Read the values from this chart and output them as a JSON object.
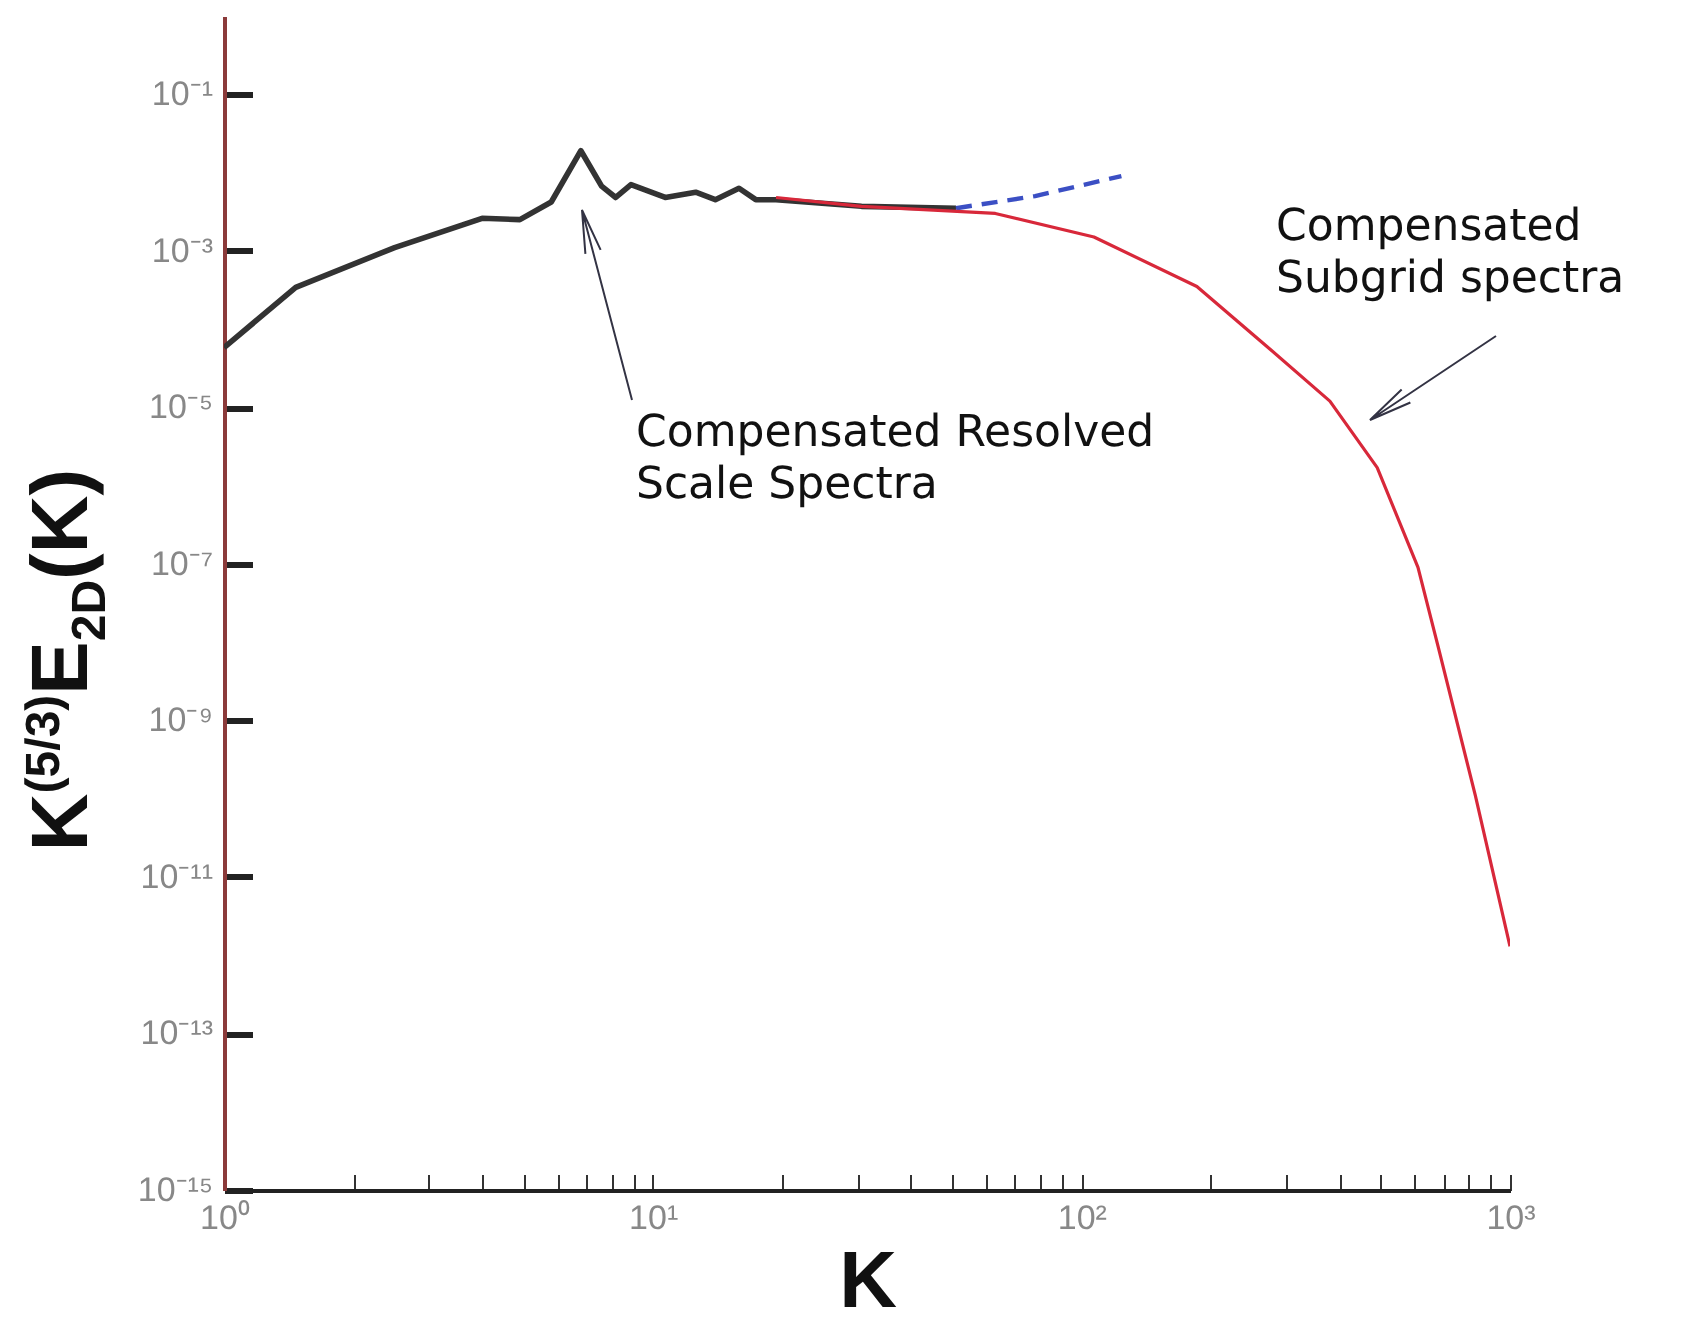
{
  "chart_data": {
    "type": "line",
    "xlabel": "K",
    "ylabel": "K$^{(5/3)}$E$_{2D}$(K)",
    "log": "xy",
    "xlim": [
      1,
      1000
    ],
    "ylim": [
      1e-15,
      1
    ],
    "xticks": [
      {
        "value": 1,
        "label": "10⁰"
      },
      {
        "value": 2,
        "label": null
      },
      {
        "value": 3,
        "label": null
      },
      {
        "value": 4,
        "label": null
      },
      {
        "value": 5,
        "label": null
      },
      {
        "value": 6,
        "label": null
      },
      {
        "value": 7,
        "label": null
      },
      {
        "value": 8,
        "label": null
      },
      {
        "value": 9,
        "label": null
      },
      {
        "value": 10,
        "label": "10¹"
      },
      {
        "value": 20,
        "label": null
      },
      {
        "value": 30,
        "label": null
      },
      {
        "value": 40,
        "label": null
      },
      {
        "value": 50,
        "label": null
      },
      {
        "value": 60,
        "label": null
      },
      {
        "value": 70,
        "label": null
      },
      {
        "value": 80,
        "label": null
      },
      {
        "value": 90,
        "label": null
      },
      {
        "value": 100,
        "label": "10²"
      },
      {
        "value": 200,
        "label": null
      },
      {
        "value": 300,
        "label": null
      },
      {
        "value": 400,
        "label": null
      },
      {
        "value": 500,
        "label": null
      },
      {
        "value": 600,
        "label": null
      },
      {
        "value": 700,
        "label": null
      },
      {
        "value": 800,
        "label": null
      },
      {
        "value": 900,
        "label": null
      },
      {
        "value": 1000,
        "label": "10³"
      }
    ],
    "yticks": [
      {
        "value": 1e-15,
        "label": "10⁻¹⁵"
      },
      {
        "value": 1e-13,
        "label": "10⁻¹³"
      },
      {
        "value": 1e-11,
        "label": "10⁻¹¹"
      },
      {
        "value": 1e-09,
        "label": "10⁻⁹"
      },
      {
        "value": 1e-07,
        "label": "10⁻⁷"
      },
      {
        "value": 1e-05,
        "label": "10⁻⁵"
      },
      {
        "value": 0.001,
        "label": "10⁻³"
      },
      {
        "value": 0.1,
        "label": "10⁻¹"
      }
    ],
    "series": [
      {
        "color": "#333333",
        "line_style": "solid",
        "x": [
          1,
          1.47,
          2.5,
          4.0,
          4.9,
          5.8,
          6.8,
          7.6,
          8.2,
          8.9,
          10.7,
          12.6,
          14,
          15.9,
          17.4,
          19.4,
          30.7,
          51
        ],
        "values": [
          5.8e-05,
          0.00034,
          0.0011,
          0.0026,
          0.0025,
          0.0042,
          0.019,
          0.0067,
          0.0048,
          0.007,
          0.0048,
          0.0056,
          0.0045,
          0.0063,
          0.0045,
          0.0045,
          0.0037,
          0.0035
        ]
      },
      {
        "color": "#3b4fc4",
        "line_style": "dashed",
        "x": [
          51,
          78,
          124
        ],
        "values": [
          0.0035,
          0.005,
          0.009
        ]
      },
      {
        "color": "#d8283a",
        "line_style": "solid",
        "x": [
          19.4,
          30.7,
          63,
          107,
          186,
          263,
          380,
          490,
          610,
          680,
          830,
          1000
        ],
        "values": [
          0.0048,
          0.0037,
          0.003,
          0.0015,
          0.00035,
          6.9e-05,
          1.2e-05,
          1.7e-06,
          9e-08,
          8.7e-09,
          1.1e-10,
          1.3e-12
        ]
      }
    ],
    "annotations": [
      "Compensated Resolved\nScale Spectra",
      "Compensated\nSubgrid spectra"
    ]
  }
}
